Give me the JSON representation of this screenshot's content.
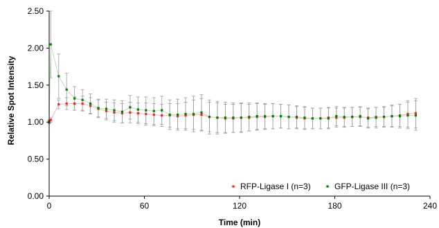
{
  "chart_data": {
    "type": "scatter",
    "xlabel": "Time (min)",
    "ylabel": "Relative Spot Intensity",
    "xlim": [
      0,
      240
    ],
    "ylim": [
      0,
      2.5
    ],
    "x_ticks": [
      0,
      60,
      120,
      180,
      240
    ],
    "x_tick_labels": [
      "0",
      "60",
      "120",
      "180",
      "240"
    ],
    "y_ticks": [
      0,
      0.5,
      1.0,
      1.5,
      2.0,
      2.5
    ],
    "y_tick_labels": [
      "0.00",
      "0.50",
      "1.00",
      "1.50",
      "2.00",
      "2.50"
    ],
    "grid": false,
    "legend_position": "bottom-right",
    "x": [
      0,
      1,
      6,
      11,
      16,
      21,
      26,
      31,
      36,
      41,
      46,
      51,
      56,
      61,
      66,
      71,
      76,
      81,
      86,
      91,
      96,
      101,
      106,
      111,
      116,
      121,
      126,
      131,
      136,
      141,
      146,
      151,
      156,
      161,
      166,
      171,
      176,
      181,
      186,
      191,
      196,
      201,
      206,
      211,
      216,
      221,
      226,
      231
    ],
    "series": [
      {
        "name": "RFP-Ligase I (n=3)",
        "color": "#ff2020",
        "values": [
          1.01,
          1.03,
          1.24,
          1.25,
          1.25,
          1.25,
          1.22,
          1.18,
          1.15,
          1.13,
          1.12,
          1.13,
          1.12,
          1.11,
          1.1,
          1.09,
          1.09,
          1.08,
          1.09,
          1.1,
          1.1,
          1.07,
          1.06,
          1.05,
          1.05,
          1.06,
          1.06,
          1.07,
          1.07,
          1.08,
          1.08,
          1.07,
          1.06,
          1.05,
          1.05,
          1.05,
          1.06,
          1.06,
          1.06,
          1.07,
          1.07,
          1.06,
          1.07,
          1.07,
          1.08,
          1.09,
          1.11,
          1.12
        ],
        "error": [
          0.02,
          0.03,
          0.06,
          0.08,
          0.09,
          0.1,
          0.11,
          0.12,
          0.12,
          0.13,
          0.13,
          0.14,
          0.14,
          0.15,
          0.15,
          0.15,
          0.16,
          0.17,
          0.18,
          0.2,
          0.22,
          0.2,
          0.2,
          0.19,
          0.19,
          0.19,
          0.18,
          0.18,
          0.17,
          0.17,
          0.16,
          0.16,
          0.15,
          0.15,
          0.14,
          0.14,
          0.14,
          0.13,
          0.13,
          0.13,
          0.13,
          0.13,
          0.13,
          0.13,
          0.14,
          0.15,
          0.18,
          0.2
        ]
      },
      {
        "name": "GFP-Ligase III (n=3)",
        "color": "#008000",
        "values": [
          1.0,
          2.05,
          1.62,
          1.44,
          1.32,
          1.3,
          1.25,
          1.19,
          1.18,
          1.16,
          1.14,
          1.2,
          1.17,
          1.16,
          1.15,
          1.16,
          1.1,
          1.1,
          1.11,
          1.11,
          1.13,
          1.07,
          1.06,
          1.06,
          1.06,
          1.06,
          1.07,
          1.08,
          1.08,
          1.08,
          1.08,
          1.07,
          1.07,
          1.06,
          1.05,
          1.05,
          1.05,
          1.08,
          1.07,
          1.07,
          1.08,
          1.05,
          1.06,
          1.07,
          1.08,
          1.08,
          1.09,
          1.09
        ],
        "error": [
          0.02,
          0.45,
          0.3,
          0.22,
          0.16,
          0.14,
          0.13,
          0.12,
          0.13,
          0.14,
          0.15,
          0.16,
          0.17,
          0.18,
          0.18,
          0.19,
          0.2,
          0.21,
          0.22,
          0.24,
          0.24,
          0.23,
          0.22,
          0.21,
          0.2,
          0.2,
          0.19,
          0.18,
          0.17,
          0.17,
          0.16,
          0.16,
          0.15,
          0.15,
          0.14,
          0.14,
          0.14,
          0.13,
          0.13,
          0.13,
          0.13,
          0.13,
          0.14,
          0.14,
          0.15,
          0.16,
          0.18,
          0.2
        ]
      }
    ]
  }
}
